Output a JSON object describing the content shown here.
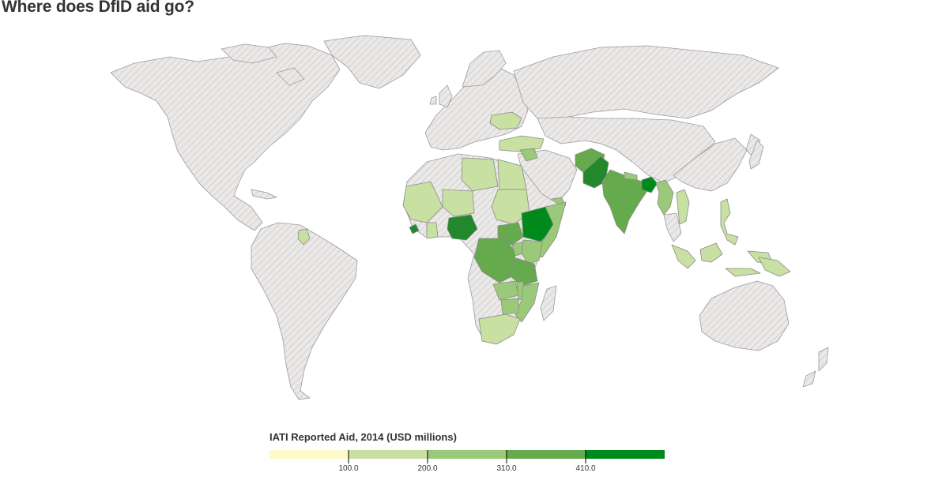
{
  "header": {
    "title": "Where does DfID aid go?"
  },
  "legend": {
    "title": "IATI Reported Aid, 2014 (USD millions)",
    "breaks": [
      "100.0",
      "200.0",
      "310.0",
      "410.0"
    ],
    "colors": [
      "#fef9c8",
      "#c8e0a1",
      "#9bc97a",
      "#65ab4e",
      "#23882b",
      "#008a1b"
    ]
  },
  "map": {
    "no_data_pattern": "diagonal-hatch",
    "no_data_color": "#e8e5e5",
    "border_color": "#9b9b9b",
    "aid_recipients": [
      {
        "region": "Ethiopia",
        "class": 5
      },
      {
        "region": "Bangladesh",
        "class": 5
      },
      {
        "region": "Pakistan",
        "class": 4
      },
      {
        "region": "Nigeria",
        "class": 4
      },
      {
        "region": "Afghanistan",
        "class": 3
      },
      {
        "region": "India",
        "class": 3
      },
      {
        "region": "DR Congo",
        "class": 3
      },
      {
        "region": "South Sudan",
        "class": 3
      },
      {
        "region": "Tanzania",
        "class": 3
      },
      {
        "region": "Sierra Leone",
        "class": 4
      },
      {
        "region": "Kenya",
        "class": 2
      },
      {
        "region": "Uganda",
        "class": 2
      },
      {
        "region": "Somalia",
        "class": 2
      },
      {
        "region": "Mozambique",
        "class": 2
      },
      {
        "region": "Malawi",
        "class": 2
      },
      {
        "region": "Zimbabwe",
        "class": 2
      },
      {
        "region": "Zambia",
        "class": 2
      },
      {
        "region": "Burma",
        "class": 2
      },
      {
        "region": "Syria",
        "class": 2
      },
      {
        "region": "Yemen",
        "class": 2
      },
      {
        "region": "Nepal",
        "class": 2
      },
      {
        "region": "South Africa",
        "class": 1
      },
      {
        "region": "Sudan",
        "class": 1
      },
      {
        "region": "Libya",
        "class": 1
      },
      {
        "region": "Egypt",
        "class": 1
      },
      {
        "region": "Turkey",
        "class": 1
      },
      {
        "region": "Ukraine",
        "class": 1
      },
      {
        "region": "Mali",
        "class": 1
      },
      {
        "region": "Niger",
        "class": 1
      },
      {
        "region": "Ghana",
        "class": 1
      },
      {
        "region": "Indonesia",
        "class": 1
      },
      {
        "region": "Philippines",
        "class": 1
      },
      {
        "region": "Vietnam",
        "class": 1
      },
      {
        "region": "Guyana",
        "class": 1
      },
      {
        "region": "Papua New Guinea",
        "class": 1
      }
    ]
  }
}
